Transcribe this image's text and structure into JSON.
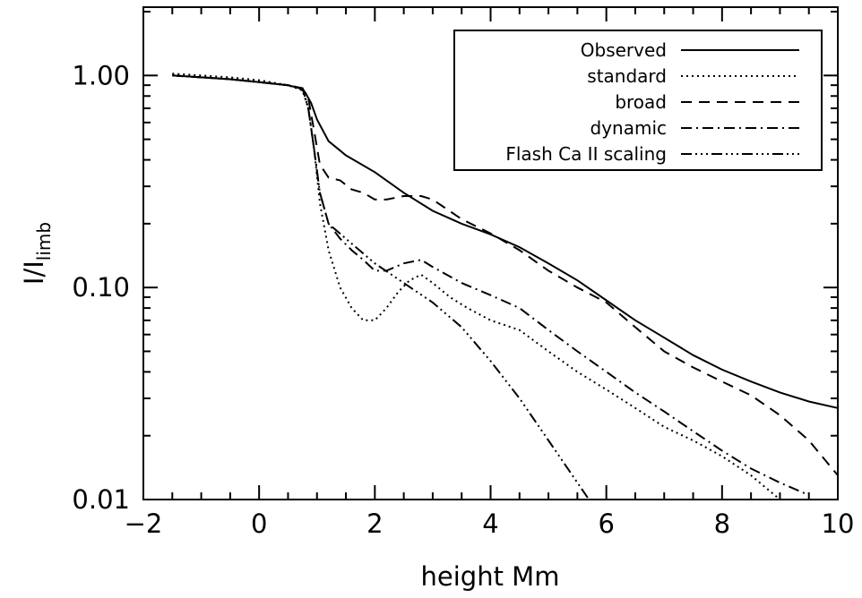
{
  "chart_data": {
    "type": "line",
    "xlabel": "height Mm",
    "ylabel_main": "I/I",
    "ylabel_sub": "limb",
    "xlim": [
      -2,
      10
    ],
    "ylim": [
      0.01,
      2.1
    ],
    "yscale": "log",
    "grid": false,
    "legend_position": "top-right",
    "x_ticks": [
      {
        "value": -2,
        "label": "−2"
      },
      {
        "value": 0,
        "label": "0"
      },
      {
        "value": 2,
        "label": "2"
      },
      {
        "value": 4,
        "label": "4"
      },
      {
        "value": 6,
        "label": "6"
      },
      {
        "value": 8,
        "label": "8"
      },
      {
        "value": 10,
        "label": "10"
      }
    ],
    "y_ticks": [
      {
        "value": 1.0,
        "label": "1.00"
      },
      {
        "value": 0.1,
        "label": "0.10"
      },
      {
        "value": 0.01,
        "label": "0.01"
      }
    ],
    "series": [
      {
        "name": "Observed",
        "dash": "solid",
        "x": [
          -1.5,
          -1,
          -0.5,
          0,
          0.5,
          0.7,
          0.8,
          0.9,
          1.0,
          1.2,
          1.5,
          2.0,
          2.5,
          3.0,
          3.5,
          4.0,
          4.5,
          5.0,
          5.5,
          6.0,
          6.5,
          7.0,
          7.5,
          8.0,
          8.5,
          9.0,
          9.5,
          10.0
        ],
        "y": [
          1.0,
          0.98,
          0.96,
          0.93,
          0.9,
          0.87,
          0.83,
          0.74,
          0.62,
          0.49,
          0.42,
          0.35,
          0.28,
          0.23,
          0.2,
          0.178,
          0.155,
          0.13,
          0.108,
          0.087,
          0.07,
          0.058,
          0.048,
          0.041,
          0.036,
          0.032,
          0.029,
          0.027
        ]
      },
      {
        "name": "standard",
        "dash": "dotted",
        "x": [
          -1.5,
          -1,
          -0.5,
          0,
          0.5,
          0.75,
          0.85,
          0.95,
          1.05,
          1.2,
          1.4,
          1.6,
          1.8,
          2.0,
          2.2,
          2.4,
          2.6,
          2.8,
          3.0,
          3.3,
          3.6,
          4.0,
          4.5,
          5.0,
          5.5,
          6.0,
          6.5,
          7.0,
          7.5,
          8.0,
          8.5,
          9.0
        ],
        "y": [
          1.02,
          1.0,
          0.98,
          0.95,
          0.9,
          0.85,
          0.7,
          0.45,
          0.25,
          0.15,
          0.1,
          0.08,
          0.07,
          0.07,
          0.08,
          0.095,
          0.108,
          0.115,
          0.105,
          0.09,
          0.08,
          0.07,
          0.063,
          0.05,
          0.04,
          0.033,
          0.027,
          0.022,
          0.019,
          0.016,
          0.013,
          0.01
        ]
      },
      {
        "name": "broad",
        "dash": "dashed",
        "x": [
          -1.5,
          -1,
          -0.5,
          0,
          0.5,
          0.75,
          0.85,
          0.95,
          1.05,
          1.2,
          1.4,
          1.6,
          1.8,
          2.0,
          2.2,
          2.5,
          2.8,
          3.0,
          3.5,
          4.0,
          4.5,
          5.0,
          5.5,
          6.0,
          6.5,
          7.0,
          7.5,
          8.0,
          8.5,
          9.0,
          9.5,
          10.0
        ],
        "y": [
          1.0,
          0.98,
          0.96,
          0.93,
          0.9,
          0.87,
          0.78,
          0.55,
          0.38,
          0.33,
          0.32,
          0.29,
          0.28,
          0.26,
          0.26,
          0.27,
          0.27,
          0.26,
          0.21,
          0.18,
          0.15,
          0.12,
          0.1,
          0.085,
          0.065,
          0.05,
          0.042,
          0.036,
          0.031,
          0.025,
          0.019,
          0.013
        ]
      },
      {
        "name": "dynamic",
        "dash": "dash-dot",
        "x": [
          -1.5,
          -1,
          -0.5,
          0,
          0.5,
          0.75,
          0.85,
          0.95,
          1.05,
          1.2,
          1.4,
          1.6,
          1.8,
          2.0,
          2.2,
          2.5,
          2.8,
          3.0,
          3.5,
          4.0,
          4.5,
          5.0,
          5.5,
          6.0,
          6.5,
          7.0,
          7.5,
          8.0,
          8.5,
          9.0,
          9.5
        ],
        "y": [
          1.0,
          0.98,
          0.96,
          0.93,
          0.9,
          0.87,
          0.7,
          0.45,
          0.28,
          0.2,
          0.17,
          0.15,
          0.135,
          0.12,
          0.12,
          0.13,
          0.135,
          0.125,
          0.105,
          0.092,
          0.08,
          0.063,
          0.05,
          0.04,
          0.032,
          0.026,
          0.021,
          0.017,
          0.014,
          0.012,
          0.0105
        ]
      },
      {
        "name": "Flash Ca II scaling",
        "dash": "dash-dot-dot",
        "x": [
          -1.5,
          -1,
          -0.5,
          0,
          0.5,
          0.75,
          0.85,
          0.95,
          1.05,
          1.2,
          1.5,
          2.0,
          2.5,
          3.0,
          3.5,
          4.0,
          4.5,
          5.0,
          5.5,
          5.7
        ],
        "y": [
          1.0,
          0.98,
          0.96,
          0.93,
          0.9,
          0.87,
          0.7,
          0.45,
          0.28,
          0.2,
          0.17,
          0.13,
          0.105,
          0.085,
          0.065,
          0.045,
          0.03,
          0.019,
          0.012,
          0.01
        ]
      }
    ]
  }
}
